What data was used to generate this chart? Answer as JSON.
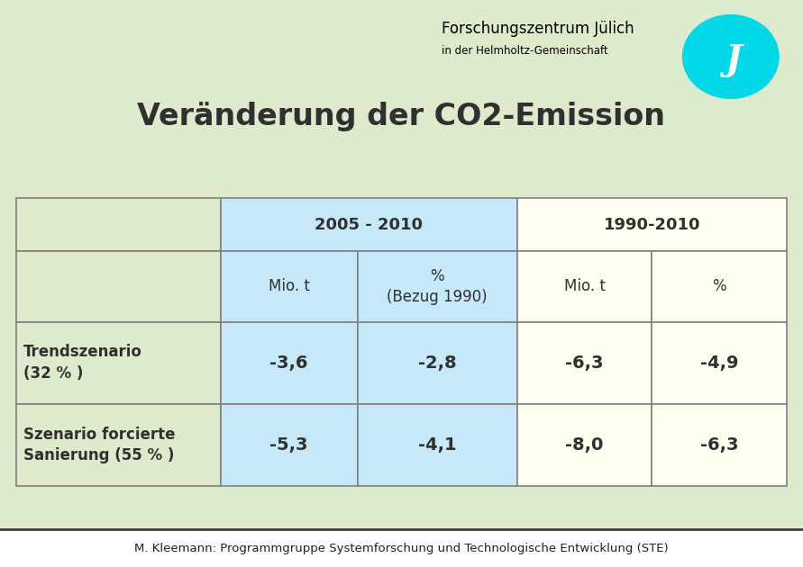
{
  "title": "Veränderung der CO2-Emission",
  "bg_color": "#deeacc",
  "header_org": "Forschungszentrum Jülich",
  "header_sub": "in der Helmholtz-Gemeinschaft",
  "footer": "M. Kleemann: Programmgruppe Systemforschung und Technologische Entwicklung (STE)",
  "col_headers_row1": [
    "",
    "2005 - 2010",
    "1990-2010"
  ],
  "col_headers_row2": [
    "",
    "Mio. t",
    "%\n(Bezug 1990)",
    "Mio. t",
    "%"
  ],
  "row_labels": [
    "Trendszenario\n(32 % )",
    "Szenario forcierte\nSanierung (55 % )"
  ],
  "data": [
    [
      "-3,6",
      "-2,8",
      "-6,3",
      "-4,9"
    ],
    [
      "-5,3",
      "-4,1",
      "-8,0",
      "-6,3"
    ]
  ],
  "cell_color_blue": "#c6e8f8",
  "cell_color_yellow": "#fffff0",
  "cell_color_label": "#deeacc",
  "border_color": "#808080",
  "text_color": "#303030",
  "title_color": "#303030",
  "footer_bg": "#ffffff",
  "footer_color": "#202020",
  "logo_color": "#00d8e8"
}
